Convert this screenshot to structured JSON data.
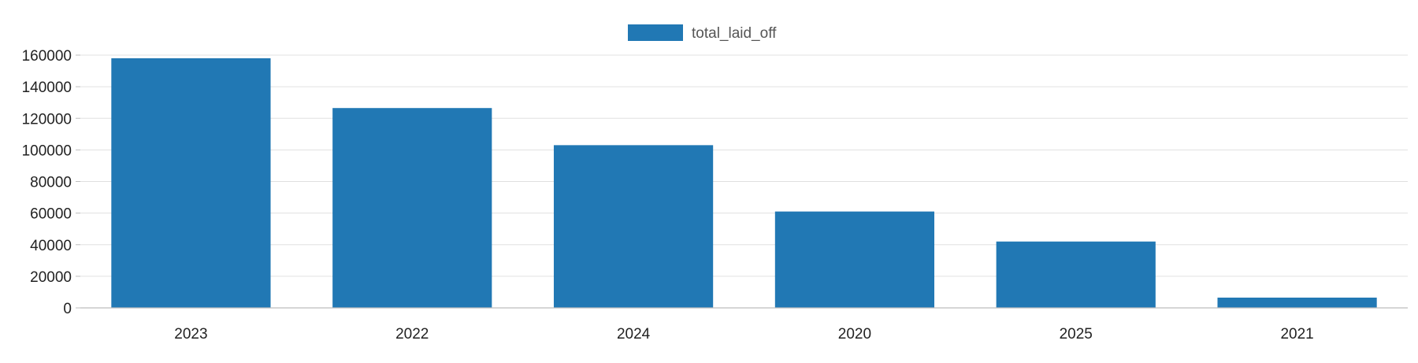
{
  "chart_data": {
    "type": "bar",
    "categories": [
      "2023",
      "2022",
      "2024",
      "2020",
      "2025",
      "2021"
    ],
    "series": [
      {
        "name": "total_laid_off",
        "values": [
          158000,
          126500,
          103000,
          61000,
          42000,
          6500
        ],
        "color": "#2178b4"
      }
    ],
    "ylim": [
      0,
      160000
    ],
    "yticks": [
      0,
      20000,
      40000,
      60000,
      80000,
      100000,
      120000,
      140000,
      160000
    ],
    "grid": true,
    "legend_position": "top-center",
    "title": "",
    "xlabel": "",
    "ylabel": ""
  }
}
